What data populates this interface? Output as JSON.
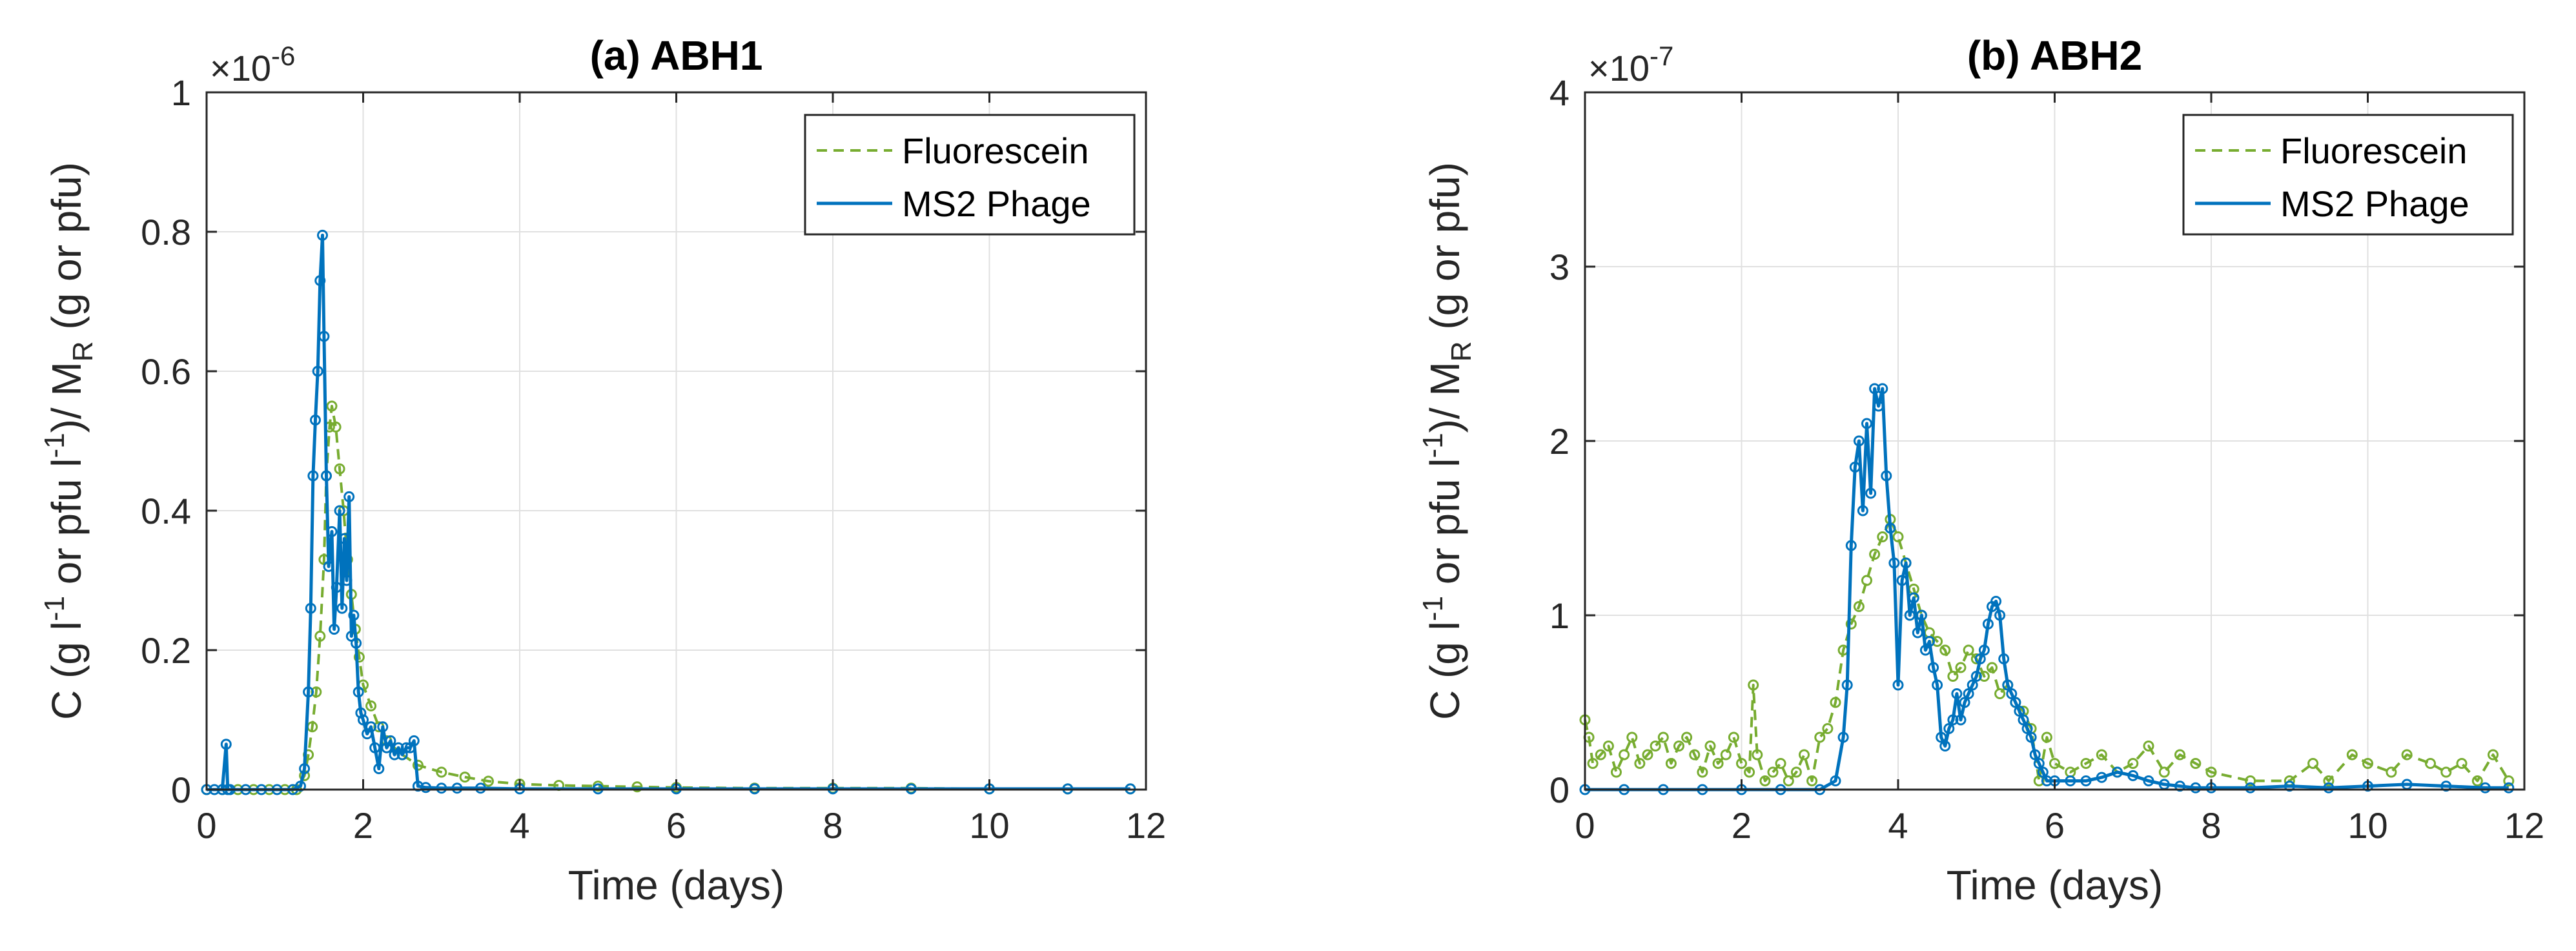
{
  "figure": {
    "background": "#ffffff"
  },
  "chart_data": [
    {
      "type": "line",
      "title": "(a) ABH1",
      "xlabel": "Time (days)",
      "ylabel": "C (g l⁻¹ or pfu l⁻¹)/ M_R (g or pfu)",
      "ylabel_parts": {
        "a": "C (g l",
        "sup1": "-1",
        "b": " or pfu l",
        "sup2": "-1",
        "c": ")/ M",
        "sub": "R",
        "d": " (g or pfu)"
      },
      "y_exponent": {
        "base": "×10",
        "power": "-6"
      },
      "xlim": [
        0,
        12
      ],
      "ylim": [
        0,
        1
      ],
      "xticks": [
        0,
        2,
        4,
        6,
        8,
        10,
        12
      ],
      "yticks": [
        0,
        0.2,
        0.4,
        0.6,
        0.8,
        1
      ],
      "xtick_labels": [
        "0",
        "2",
        "4",
        "6",
        "8",
        "10",
        "12"
      ],
      "ytick_labels": [
        "0",
        "0.2",
        "0.4",
        "0.6",
        "0.8",
        "1"
      ],
      "grid": true,
      "legend_position": "top-right",
      "legend": [
        "Fluorescein",
        "MS2 Phage"
      ],
      "series": [
        {
          "name": "Fluorescein",
          "color": "#77ac30",
          "dash": "dashed",
          "x": [
            0,
            0.2,
            0.4,
            0.6,
            0.8,
            1.0,
            1.15,
            1.25,
            1.3,
            1.35,
            1.4,
            1.45,
            1.5,
            1.53,
            1.57,
            1.6,
            1.65,
            1.7,
            1.75,
            1.8,
            1.85,
            1.9,
            1.95,
            2.0,
            2.1,
            2.2,
            2.3,
            2.5,
            2.7,
            3.0,
            3.3,
            3.6,
            4.0,
            4.5,
            5.0,
            5.5,
            6.0,
            7.0,
            8.0,
            9.0,
            10.0,
            11.0,
            11.8
          ],
          "values": [
            0,
            0,
            0,
            0,
            0,
            0,
            0,
            0.02,
            0.05,
            0.09,
            0.14,
            0.22,
            0.33,
            0.45,
            0.52,
            0.55,
            0.52,
            0.46,
            0.4,
            0.33,
            0.28,
            0.23,
            0.19,
            0.15,
            0.12,
            0.09,
            0.07,
            0.05,
            0.035,
            0.025,
            0.018,
            0.012,
            0.008,
            0.006,
            0.005,
            0.004,
            0.003,
            0.002,
            0.002,
            0.002,
            0.001,
            0.001,
            0.001
          ]
        },
        {
          "name": "MS2 Phage",
          "color": "#0072bd",
          "dash": "solid",
          "x": [
            0,
            0.1,
            0.2,
            0.25,
            0.27,
            0.3,
            0.5,
            0.7,
            0.9,
            1.1,
            1.2,
            1.25,
            1.3,
            1.33,
            1.36,
            1.39,
            1.42,
            1.45,
            1.48,
            1.5,
            1.53,
            1.56,
            1.6,
            1.63,
            1.66,
            1.7,
            1.73,
            1.76,
            1.79,
            1.82,
            1.85,
            1.88,
            1.91,
            1.94,
            1.97,
            2.0,
            2.05,
            2.1,
            2.15,
            2.2,
            2.25,
            2.3,
            2.35,
            2.4,
            2.45,
            2.5,
            2.55,
            2.6,
            2.65,
            2.7,
            2.8,
            3.0,
            3.2,
            3.5,
            4.0,
            5.0,
            6.0,
            7.0,
            8.0,
            9.0,
            10.0,
            11.0,
            11.8
          ],
          "values": [
            0,
            0,
            0,
            0.065,
            0,
            0,
            0,
            0,
            0,
            0,
            0.005,
            0.03,
            0.14,
            0.26,
            0.45,
            0.53,
            0.6,
            0.73,
            0.795,
            0.65,
            0.45,
            0.32,
            0.37,
            0.23,
            0.29,
            0.4,
            0.26,
            0.36,
            0.3,
            0.42,
            0.22,
            0.25,
            0.21,
            0.14,
            0.11,
            0.1,
            0.08,
            0.09,
            0.06,
            0.03,
            0.09,
            0.06,
            0.07,
            0.05,
            0.06,
            0.05,
            0.06,
            0.06,
            0.07,
            0.005,
            0.003,
            0.002,
            0.002,
            0.002,
            0.001,
            0.001,
            0.001,
            0.001,
            0.001,
            0.001,
            0.001,
            0.001,
            0.001
          ]
        }
      ]
    },
    {
      "type": "line",
      "title": "(b) ABH2",
      "xlabel": "Time (days)",
      "ylabel": "C (g l⁻¹ or pfu l⁻¹)/ M_R (g or pfu)",
      "ylabel_parts": {
        "a": "C (g l",
        "sup1": "-1",
        "b": " or pfu l",
        "sup2": "-1",
        "c": ")/ M",
        "sub": "R",
        "d": " (g or pfu)"
      },
      "y_exponent": {
        "base": "×10",
        "power": "-7"
      },
      "xlim": [
        0,
        12
      ],
      "ylim": [
        0,
        4
      ],
      "xticks": [
        0,
        2,
        4,
        6,
        8,
        10,
        12
      ],
      "yticks": [
        0,
        1,
        2,
        3,
        4
      ],
      "xtick_labels": [
        "0",
        "2",
        "4",
        "6",
        "8",
        "10",
        "12"
      ],
      "ytick_labels": [
        "0",
        "1",
        "2",
        "3",
        "4"
      ],
      "grid": true,
      "legend_position": "top-right",
      "legend": [
        "Fluorescein",
        "MS2 Phage"
      ],
      "series": [
        {
          "name": "Fluorescein",
          "color": "#77ac30",
          "dash": "dashed",
          "x": [
            0,
            0.05,
            0.1,
            0.2,
            0.3,
            0.4,
            0.5,
            0.6,
            0.7,
            0.8,
            0.9,
            1.0,
            1.1,
            1.2,
            1.3,
            1.4,
            1.5,
            1.6,
            1.7,
            1.8,
            1.9,
            2.0,
            2.1,
            2.15,
            2.2,
            2.3,
            2.4,
            2.5,
            2.6,
            2.7,
            2.8,
            2.9,
            3.0,
            3.1,
            3.2,
            3.3,
            3.4,
            3.5,
            3.6,
            3.7,
            3.8,
            3.9,
            4.0,
            4.1,
            4.2,
            4.3,
            4.4,
            4.5,
            4.6,
            4.7,
            4.8,
            4.9,
            5.0,
            5.1,
            5.2,
            5.3,
            5.4,
            5.5,
            5.6,
            5.7,
            5.8,
            5.9,
            6.0,
            6.2,
            6.4,
            6.6,
            6.8,
            7.0,
            7.2,
            7.4,
            7.6,
            7.8,
            8.0,
            8.5,
            9.0,
            9.3,
            9.5,
            9.8,
            10.0,
            10.3,
            10.5,
            10.8,
            11.0,
            11.2,
            11.4,
            11.6,
            11.8
          ],
          "values": [
            0.4,
            0.3,
            0.15,
            0.2,
            0.25,
            0.1,
            0.2,
            0.3,
            0.15,
            0.2,
            0.25,
            0.3,
            0.15,
            0.25,
            0.3,
            0.2,
            0.1,
            0.25,
            0.15,
            0.2,
            0.3,
            0.15,
            0.1,
            0.6,
            0.2,
            0.05,
            0.1,
            0.15,
            0.05,
            0.1,
            0.2,
            0.05,
            0.3,
            0.35,
            0.5,
            0.8,
            0.95,
            1.05,
            1.2,
            1.35,
            1.45,
            1.55,
            1.45,
            1.3,
            1.15,
            1.0,
            0.9,
            0.85,
            0.8,
            0.65,
            0.7,
            0.8,
            0.75,
            0.65,
            0.7,
            0.55,
            0.6,
            0.5,
            0.45,
            0.35,
            0.05,
            0.3,
            0.15,
            0.1,
            0.15,
            0.2,
            0.1,
            0.15,
            0.25,
            0.1,
            0.2,
            0.15,
            0.1,
            0.05,
            0.05,
            0.15,
            0.05,
            0.2,
            0.15,
            0.1,
            0.2,
            0.15,
            0.1,
            0.15,
            0.05,
            0.2,
            0.05
          ]
        },
        {
          "name": "MS2 Phage",
          "color": "#0072bd",
          "dash": "solid",
          "x": [
            0,
            0.5,
            1.0,
            1.5,
            2.0,
            2.5,
            3.0,
            3.2,
            3.3,
            3.35,
            3.4,
            3.45,
            3.5,
            3.55,
            3.6,
            3.65,
            3.7,
            3.75,
            3.8,
            3.85,
            3.9,
            3.95,
            4.0,
            4.05,
            4.1,
            4.15,
            4.2,
            4.25,
            4.3,
            4.35,
            4.4,
            4.45,
            4.5,
            4.55,
            4.6,
            4.65,
            4.7,
            4.75,
            4.8,
            4.85,
            4.9,
            4.95,
            5.0,
            5.05,
            5.1,
            5.15,
            5.2,
            5.25,
            5.3,
            5.35,
            5.4,
            5.45,
            5.5,
            5.55,
            5.6,
            5.65,
            5.7,
            5.75,
            5.8,
            5.85,
            5.9,
            6.0,
            6.2,
            6.4,
            6.6,
            6.8,
            7.0,
            7.2,
            7.4,
            7.6,
            7.8,
            8.0,
            8.5,
            9.0,
            9.5,
            10.0,
            10.5,
            11.0,
            11.5,
            11.8
          ],
          "values": [
            0,
            0,
            0,
            0,
            0,
            0,
            0,
            0.05,
            0.3,
            0.6,
            1.4,
            1.85,
            2.0,
            1.6,
            2.1,
            1.7,
            2.3,
            2.2,
            2.3,
            1.8,
            1.5,
            1.3,
            0.6,
            1.2,
            1.3,
            1.0,
            1.1,
            0.9,
            1.0,
            0.8,
            0.85,
            0.7,
            0.6,
            0.3,
            0.25,
            0.35,
            0.4,
            0.55,
            0.4,
            0.5,
            0.55,
            0.6,
            0.65,
            0.75,
            0.8,
            0.95,
            1.05,
            1.08,
            1.0,
            0.75,
            0.6,
            0.55,
            0.5,
            0.45,
            0.4,
            0.35,
            0.3,
            0.2,
            0.15,
            0.1,
            0.05,
            0.05,
            0.05,
            0.05,
            0.07,
            0.1,
            0.08,
            0.05,
            0.03,
            0.02,
            0.01,
            0.01,
            0.01,
            0.02,
            0.01,
            0.02,
            0.03,
            0.02,
            0.01,
            0.01
          ]
        }
      ]
    }
  ]
}
